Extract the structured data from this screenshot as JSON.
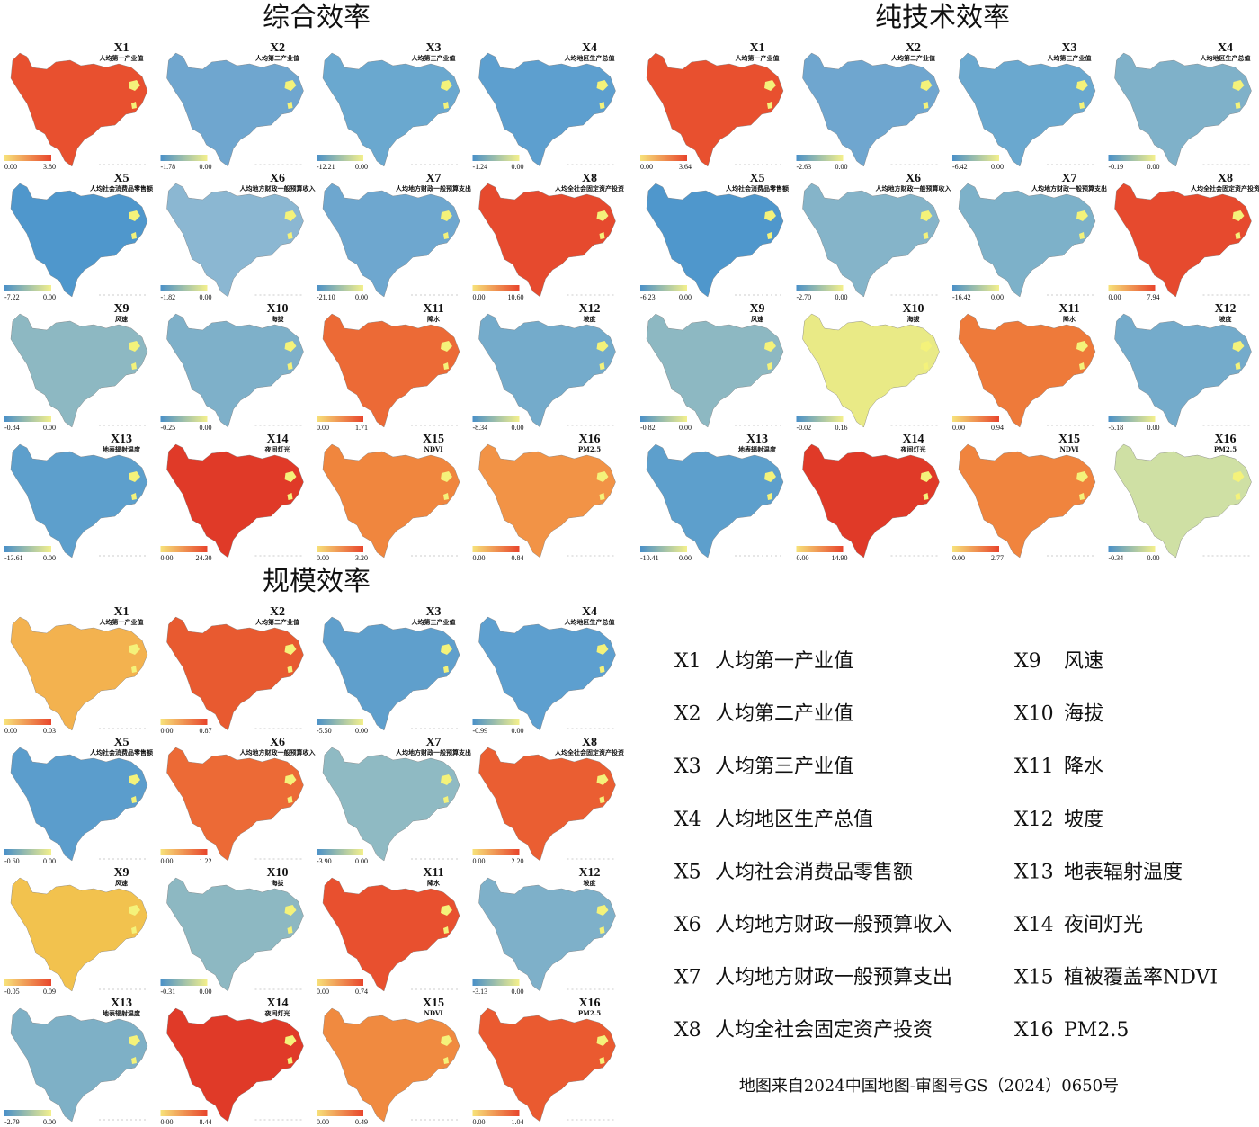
{
  "variables": [
    {
      "code": "X1",
      "subtitle": "人均第一产业值"
    },
    {
      "code": "X2",
      "subtitle": "人均第二产业值"
    },
    {
      "code": "X3",
      "subtitle": "人均第三产业值"
    },
    {
      "code": "X4",
      "subtitle": "人均地区生产总值"
    },
    {
      "code": "X5",
      "subtitle": "人均社会消费品零售额"
    },
    {
      "code": "X6",
      "subtitle": "人均地方财政一般预算收入"
    },
    {
      "code": "X7",
      "subtitle": "人均地方财政一般预算支出"
    },
    {
      "code": "X8",
      "subtitle": "人均全社会固定资产投资"
    },
    {
      "code": "X9",
      "subtitle": "风速"
    },
    {
      "code": "X10",
      "subtitle": "海拔"
    },
    {
      "code": "X11",
      "subtitle": "降水"
    },
    {
      "code": "X12",
      "subtitle": "坡度"
    },
    {
      "code": "X13",
      "subtitle": "地表辐射温度"
    },
    {
      "code": "X14",
      "subtitle": "夜间灯光"
    },
    {
      "code": "X15",
      "subtitle": "NDVI"
    },
    {
      "code": "X16",
      "subtitle": "PM2.5"
    }
  ],
  "groups": [
    {
      "title": "综合效率",
      "maps": [
        {
          "min": "0.00",
          "max": "3.80",
          "color": "#e8502f",
          "bar": [
            "#f7e27a",
            "#e8452c"
          ]
        },
        {
          "min": "-1.78",
          "max": "0.00",
          "color": "#6fa6cf",
          "bar": [
            "#4a90c8",
            "#f4f08c"
          ]
        },
        {
          "min": "-12.21",
          "max": "0.00",
          "color": "#6aa8cf",
          "bar": [
            "#4a90c8",
            "#f4f08c"
          ]
        },
        {
          "min": "-1.24",
          "max": "0.00",
          "color": "#5d9fcf",
          "bar": [
            "#4a90c8",
            "#f4f08c"
          ]
        },
        {
          "min": "-7.22",
          "max": "0.00",
          "color": "#4f97cc",
          "bar": [
            "#4a90c8",
            "#f4f08c"
          ]
        },
        {
          "min": "-1.82",
          "max": "0.00",
          "color": "#8bb7d2",
          "bar": [
            "#4a90c8",
            "#f4f08c"
          ]
        },
        {
          "min": "-21.10",
          "max": "0.00",
          "color": "#6ea7cf",
          "bar": [
            "#4a90c8",
            "#f4f08c"
          ]
        },
        {
          "min": "0.00",
          "max": "10.60",
          "color": "#e64a2e",
          "bar": [
            "#f7e27a",
            "#e8452c"
          ]
        },
        {
          "min": "-0.84",
          "max": "0.00",
          "color": "#8db8c2",
          "bar": [
            "#4a90c8",
            "#f4f08c"
          ]
        },
        {
          "min": "-0.25",
          "max": "0.00",
          "color": "#7eb0c9",
          "bar": [
            "#4a90c8",
            "#f4f08c"
          ]
        },
        {
          "min": "0.00",
          "max": "1.71",
          "color": "#ec6a36",
          "bar": [
            "#f7e27a",
            "#e8452c"
          ]
        },
        {
          "min": "-8.34",
          "max": "0.00",
          "color": "#74abcb",
          "bar": [
            "#4a90c8",
            "#f4f08c"
          ]
        },
        {
          "min": "-13.61",
          "max": "0.00",
          "color": "#5d9fcc",
          "bar": [
            "#4a90c8",
            "#f4f08c"
          ]
        },
        {
          "min": "0.00",
          "max": "24.30",
          "color": "#e03a28",
          "bar": [
            "#f7e27a",
            "#e8452c"
          ]
        },
        {
          "min": "0.00",
          "max": "3.20",
          "color": "#f0863e",
          "bar": [
            "#f7e27a",
            "#e8452c"
          ]
        },
        {
          "min": "0.00",
          "max": "0.84",
          "color": "#f29346",
          "bar": [
            "#f7e27a",
            "#e8452c"
          ]
        }
      ]
    },
    {
      "title": "纯技术效率",
      "maps": [
        {
          "min": "0.00",
          "max": "3.64",
          "color": "#e8502f",
          "bar": [
            "#f7e27a",
            "#e8452c"
          ]
        },
        {
          "min": "-2.63",
          "max": "0.00",
          "color": "#6fa6cf",
          "bar": [
            "#4a90c8",
            "#f4f08c"
          ]
        },
        {
          "min": "-6.42",
          "max": "0.00",
          "color": "#6aa8cf",
          "bar": [
            "#4a90c8",
            "#f4f08c"
          ]
        },
        {
          "min": "-0.19",
          "max": "0.00",
          "color": "#7fb1c9",
          "bar": [
            "#4a90c8",
            "#f4f08c"
          ]
        },
        {
          "min": "-6.23",
          "max": "0.00",
          "color": "#4f97cc",
          "bar": [
            "#4a90c8",
            "#f4f08c"
          ]
        },
        {
          "min": "-2.70",
          "max": "0.00",
          "color": "#85b4c9",
          "bar": [
            "#4a90c8",
            "#f4f08c"
          ]
        },
        {
          "min": "-16.42",
          "max": "0.00",
          "color": "#7db1c9",
          "bar": [
            "#4a90c8",
            "#f4f08c"
          ]
        },
        {
          "min": "0.00",
          "max": "7.94",
          "color": "#e64a2e",
          "bar": [
            "#f7e27a",
            "#e8452c"
          ]
        },
        {
          "min": "-0.82",
          "max": "0.00",
          "color": "#8db8c2",
          "bar": [
            "#4a90c8",
            "#f4f08c"
          ]
        },
        {
          "min": "-0.02",
          "max": "0.16",
          "color": "#e9ea86",
          "bar": [
            "#4a90c8",
            "#f4f08c"
          ]
        },
        {
          "min": "0.00",
          "max": "0.94",
          "color": "#ee7a3a",
          "bar": [
            "#f7e27a",
            "#e8452c"
          ]
        },
        {
          "min": "-5.18",
          "max": "0.00",
          "color": "#74abcb",
          "bar": [
            "#4a90c8",
            "#f4f08c"
          ]
        },
        {
          "min": "-10.41",
          "max": "0.00",
          "color": "#5d9fcc",
          "bar": [
            "#4a90c8",
            "#f4f08c"
          ]
        },
        {
          "min": "0.00",
          "max": "14.90",
          "color": "#e03a28",
          "bar": [
            "#f7e27a",
            "#e8452c"
          ]
        },
        {
          "min": "0.00",
          "max": "2.77",
          "color": "#f0843e",
          "bar": [
            "#f7e27a",
            "#e8452c"
          ]
        },
        {
          "min": "-0.34",
          "max": "0.00",
          "color": "#cfe0a4",
          "bar": [
            "#4a90c8",
            "#f4f08c"
          ]
        }
      ]
    },
    {
      "title": "规模效率",
      "maps": [
        {
          "min": "0.00",
          "max": "0.03",
          "color": "#f3b24f",
          "bar": [
            "#f7e27a",
            "#e8452c"
          ]
        },
        {
          "min": "0.00",
          "max": "0.87",
          "color": "#e85a30",
          "bar": [
            "#f7e27a",
            "#e8452c"
          ]
        },
        {
          "min": "-5.50",
          "max": "0.00",
          "color": "#5f9fcc",
          "bar": [
            "#4a90c8",
            "#f4f08c"
          ]
        },
        {
          "min": "-0.99",
          "max": "0.00",
          "color": "#5d9fcf",
          "bar": [
            "#4a90c8",
            "#f4f08c"
          ]
        },
        {
          "min": "-0.60",
          "max": "0.00",
          "color": "#5b9dcc",
          "bar": [
            "#4a90c8",
            "#f4f08c"
          ]
        },
        {
          "min": "0.00",
          "max": "1.22",
          "color": "#ec6a36",
          "bar": [
            "#f7e27a",
            "#e8452c"
          ]
        },
        {
          "min": "-3.90",
          "max": "0.00",
          "color": "#8fbac3",
          "bar": [
            "#4a90c8",
            "#f4f08c"
          ]
        },
        {
          "min": "0.00",
          "max": "2.20",
          "color": "#ea5e32",
          "bar": [
            "#f7e27a",
            "#e8452c"
          ]
        },
        {
          "min": "-0.05",
          "max": "0.09",
          "color": "#f2c24e",
          "bar": [
            "#f7e27a",
            "#e8452c"
          ]
        },
        {
          "min": "-0.31",
          "max": "0.00",
          "color": "#8db8c2",
          "bar": [
            "#4a90c8",
            "#f4f08c"
          ]
        },
        {
          "min": "0.00",
          "max": "0.74",
          "color": "#e8502f",
          "bar": [
            "#f7e27a",
            "#e8452c"
          ]
        },
        {
          "min": "-3.13",
          "max": "0.00",
          "color": "#7eb0c9",
          "bar": [
            "#4a90c8",
            "#f4f08c"
          ]
        },
        {
          "min": "-2.79",
          "max": "0.00",
          "color": "#7eb0c6",
          "bar": [
            "#4a90c8",
            "#f4f08c"
          ]
        },
        {
          "min": "0.00",
          "max": "8.44",
          "color": "#e03a28",
          "bar": [
            "#f7e27a",
            "#e8452c"
          ]
        },
        {
          "min": "0.00",
          "max": "0.49",
          "color": "#f08a40",
          "bar": [
            "#f7e27a",
            "#e8452c"
          ]
        },
        {
          "min": "0.00",
          "max": "1.04",
          "color": "#ea5a30",
          "bar": [
            "#f7e27a",
            "#e8452c"
          ]
        }
      ]
    }
  ],
  "legend": {
    "items": [
      {
        "code": "X1",
        "name": "人均第一产业值"
      },
      {
        "code": "X2",
        "name": "人均第二产业值"
      },
      {
        "code": "X3",
        "name": "人均第三产业值"
      },
      {
        "code": "X4",
        "name": "人均地区生产总值"
      },
      {
        "code": "X5",
        "name": "人均社会消费品零售额"
      },
      {
        "code": "X6",
        "name": "人均地方财政一般预算收入"
      },
      {
        "code": "X7",
        "name": "人均地方财政一般预算支出"
      },
      {
        "code": "X8",
        "name": "人均全社会固定资产投资"
      },
      {
        "code": "X9",
        "name": "风速"
      },
      {
        "code": "X10",
        "name": "海拔"
      },
      {
        "code": "X11",
        "name": "降水"
      },
      {
        "code": "X12",
        "name": "坡度"
      },
      {
        "code": "X13",
        "name": "地表辐射温度"
      },
      {
        "code": "X14",
        "name": "夜间灯光"
      },
      {
        "code": "X15",
        "name": "植被覆盖率NDVI"
      },
      {
        "code": "X16",
        "name": "PM2.5"
      }
    ]
  },
  "source": "地图来自2024中国地图-审图号GS（2024）0650号"
}
